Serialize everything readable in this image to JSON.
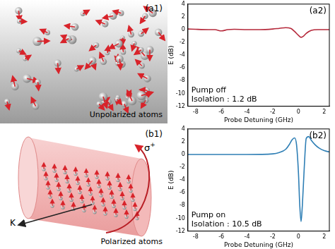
{
  "chart_data": [
    {
      "type": "line",
      "panel_label": "(a2)",
      "annotations": [
        "Pump off",
        "Isolation : 1.2 dB"
      ],
      "x_label": "Probe Detuning (GHz)",
      "y_label": "E (dB)",
      "xlim": [
        -8.6,
        2.4
      ],
      "xticks": [
        -8,
        -6,
        -4,
        -2,
        0,
        2
      ],
      "ylim": [
        -12,
        4
      ],
      "yticks": [
        -12,
        -10,
        -8,
        -6,
        -4,
        -2,
        0,
        2,
        4
      ],
      "grid": false,
      "series": [
        {
          "name": "Pump off",
          "color": "#b5283a",
          "marker": "none",
          "line_style": "solid",
          "x": [
            -8.6,
            -8,
            -7,
            -6.5,
            -6,
            -5.5,
            -5,
            -4,
            -3,
            -2,
            -1.5,
            -1,
            -0.6,
            -0.3,
            0,
            0.2,
            0.4,
            0.6,
            0.8,
            1,
            1.5,
            2,
            2.4
          ],
          "values": [
            0.1,
            0.05,
            0,
            0,
            -0.2,
            0,
            0.05,
            0,
            0,
            0.1,
            0.2,
            0.3,
            0.2,
            -0.3,
            -0.9,
            -1.2,
            -1.0,
            -0.6,
            -0.3,
            -0.1,
            0,
            0,
            0
          ]
        }
      ]
    },
    {
      "type": "line",
      "panel_label": "(b2)",
      "annotations": [
        "Pump on",
        "Isolation : 10.5 dB"
      ],
      "x_label": "Probe Detuning (GHz)",
      "y_label": "E (dB)",
      "xlim": [
        -8.6,
        2.4
      ],
      "xticks": [
        -8,
        -6,
        -4,
        -2,
        0,
        2
      ],
      "ylim": [
        -12,
        4
      ],
      "yticks": [
        -12,
        -10,
        -8,
        -6,
        -4,
        -2,
        0,
        2,
        4
      ],
      "grid": false,
      "series": [
        {
          "name": "Pump on",
          "color": "#2f7fb5",
          "marker": "none",
          "line_style": "solid",
          "x": [
            -8.6,
            -6,
            -4,
            -2,
            -1.5,
            -1,
            -0.7,
            -0.5,
            -0.3,
            -0.15,
            0,
            0.1,
            0.2,
            0.3,
            0.45,
            0.6,
            0.8,
            1,
            1.3,
            1.6,
            2,
            2.4
          ],
          "values": [
            0,
            0,
            0,
            0.1,
            0.3,
            0.8,
            1.6,
            2.3,
            2.6,
            1.5,
            -3,
            -8,
            -10.5,
            -8,
            -2,
            2.5,
            2.8,
            2.2,
            1.5,
            1,
            0.6,
            0.4
          ]
        }
      ]
    }
  ],
  "illustrations": [
    {
      "panel_label": "(a1)",
      "caption": "Unpolarized atoms"
    },
    {
      "panel_label": "(b1)",
      "caption": "Polarized atoms",
      "beam_symbol": "σ",
      "beam_superscript": "+",
      "wavevector_label": "K"
    }
  ]
}
